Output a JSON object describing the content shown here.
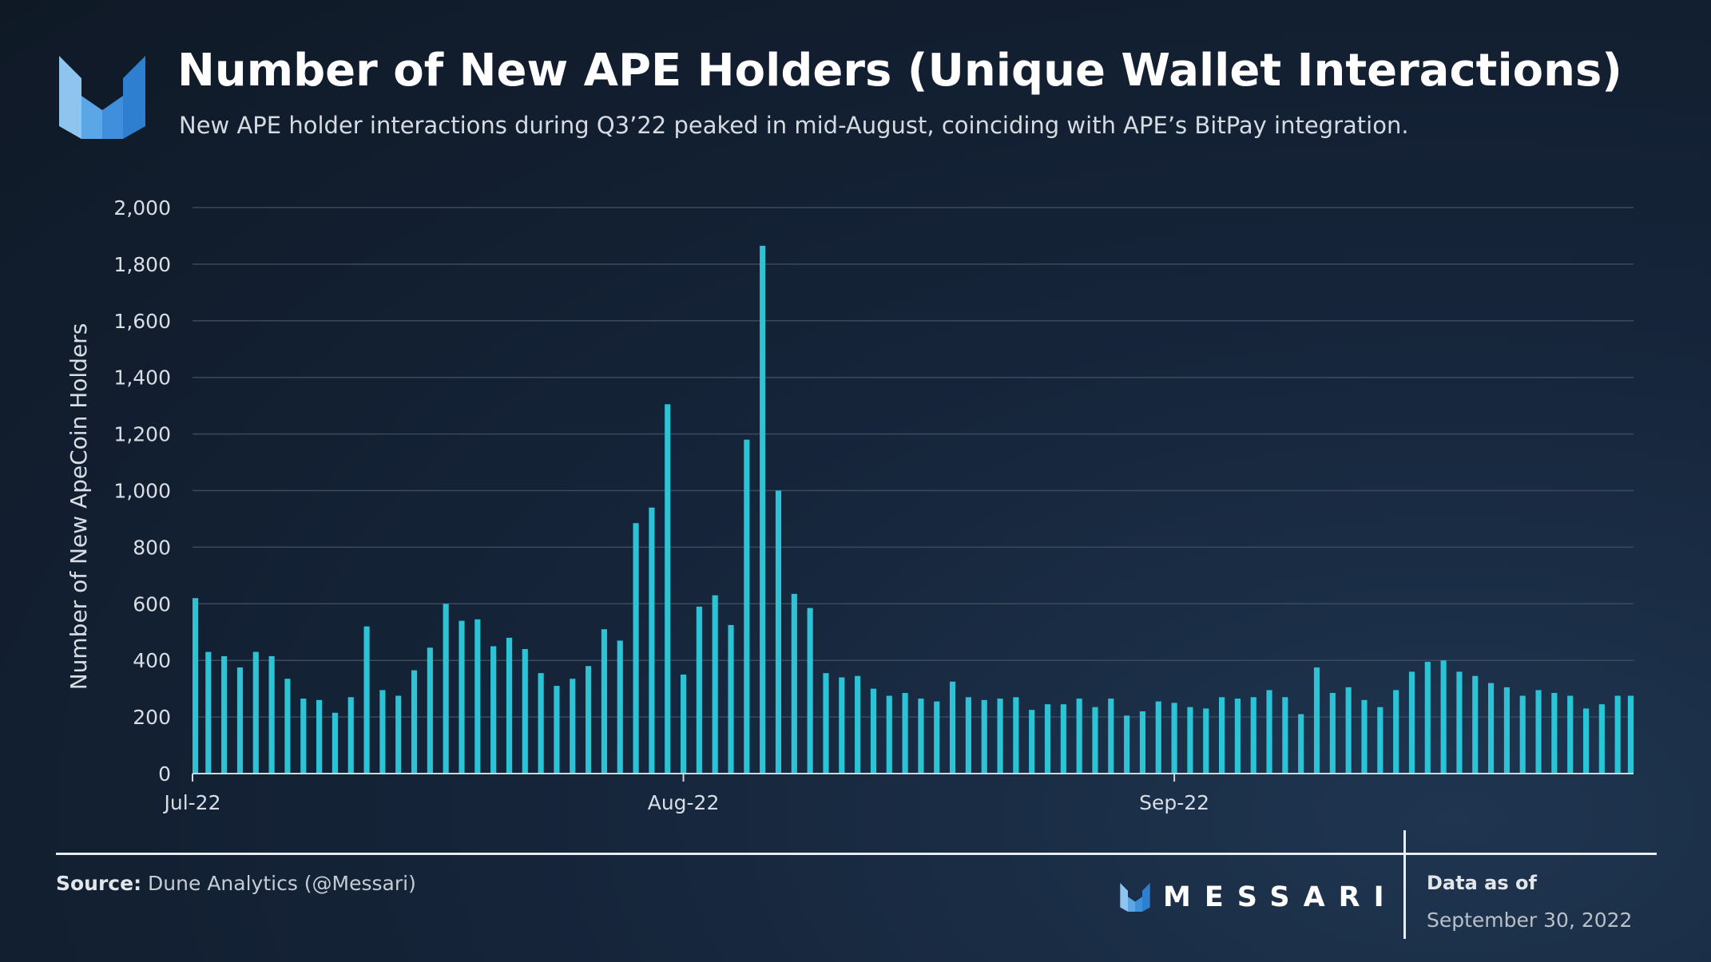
{
  "header": {
    "title": "Number of New APE Holders (Unique Wallet Interactions)",
    "subtitle": "New APE holder interactions during Q3’22 peaked in mid-August, coinciding with APE’s BitPay integration."
  },
  "chart_data": {
    "type": "bar",
    "title": "Number of New APE Holders (Unique Wallet Interactions)",
    "subtitle": "New APE holder interactions during Q3’22 peaked in mid-August, coinciding with APE’s BitPay integration.",
    "xlabel": "",
    "ylabel": "Number of New ApeCoin Holders",
    "ylim": [
      0,
      2000
    ],
    "yticks": [
      0,
      200,
      400,
      600,
      800,
      1000,
      1200,
      1400,
      1600,
      1800,
      2000
    ],
    "ytick_labels": [
      "0",
      "200",
      "400",
      "600",
      "800",
      "1,000",
      "1,200",
      "1,400",
      "1,600",
      "1,800",
      "2,000"
    ],
    "xtick_labels": [
      {
        "label": "Jul-22",
        "date": "2022-07-01"
      },
      {
        "label": "Aug-22",
        "date": "2022-08-01"
      },
      {
        "label": "Sep-22",
        "date": "2022-09-01"
      }
    ],
    "grid": true,
    "color": "#2bc4d6",
    "x": [
      "2022-07-01",
      "2022-07-02",
      "2022-07-03",
      "2022-07-04",
      "2022-07-05",
      "2022-07-06",
      "2022-07-07",
      "2022-07-08",
      "2022-07-09",
      "2022-07-10",
      "2022-07-11",
      "2022-07-12",
      "2022-07-13",
      "2022-07-14",
      "2022-07-15",
      "2022-07-16",
      "2022-07-17",
      "2022-07-18",
      "2022-07-19",
      "2022-07-20",
      "2022-07-21",
      "2022-07-22",
      "2022-07-23",
      "2022-07-24",
      "2022-07-25",
      "2022-07-26",
      "2022-07-27",
      "2022-07-28",
      "2022-07-29",
      "2022-07-30",
      "2022-07-31",
      "2022-08-01",
      "2022-08-02",
      "2022-08-03",
      "2022-08-04",
      "2022-08-05",
      "2022-08-06",
      "2022-08-07",
      "2022-08-08",
      "2022-08-09",
      "2022-08-10",
      "2022-08-11",
      "2022-08-12",
      "2022-08-13",
      "2022-08-14",
      "2022-08-15",
      "2022-08-16",
      "2022-08-17",
      "2022-08-18",
      "2022-08-19",
      "2022-08-20",
      "2022-08-21",
      "2022-08-22",
      "2022-08-23",
      "2022-08-24",
      "2022-08-25",
      "2022-08-26",
      "2022-08-27",
      "2022-08-28",
      "2022-08-29",
      "2022-08-30",
      "2022-08-31",
      "2022-09-01",
      "2022-09-02",
      "2022-09-03",
      "2022-09-04",
      "2022-09-05",
      "2022-09-06",
      "2022-09-07",
      "2022-09-08",
      "2022-09-09",
      "2022-09-10",
      "2022-09-11",
      "2022-09-12",
      "2022-09-13",
      "2022-09-14",
      "2022-09-15",
      "2022-09-16",
      "2022-09-17",
      "2022-09-18",
      "2022-09-19",
      "2022-09-20",
      "2022-09-21",
      "2022-09-22",
      "2022-09-23",
      "2022-09-24",
      "2022-09-25",
      "2022-09-26",
      "2022-09-27",
      "2022-09-28",
      "2022-09-29",
      "2022-09-30"
    ],
    "values": [
      620,
      430,
      415,
      375,
      430,
      415,
      335,
      265,
      260,
      215,
      270,
      520,
      295,
      275,
      365,
      445,
      600,
      540,
      545,
      450,
      480,
      440,
      355,
      310,
      335,
      380,
      510,
      470,
      885,
      940,
      1305,
      350,
      590,
      630,
      525,
      1180,
      1865,
      1000,
      635,
      585,
      355,
      340,
      345,
      300,
      275,
      285,
      265,
      255,
      325,
      270,
      260,
      265,
      270,
      225,
      245,
      245,
      265,
      235,
      265,
      205,
      220,
      255,
      250,
      235,
      230,
      270,
      265,
      270,
      295,
      270,
      210,
      375,
      285,
      305,
      260,
      235,
      295,
      360,
      395,
      400,
      360,
      345,
      320,
      305,
      275,
      295,
      285,
      275,
      230,
      245,
      275,
      275
    ]
  },
  "footer": {
    "source_label": "Source:",
    "source_text": "Dune Analytics (@Messari)",
    "brand": "MESSARI",
    "data_as_of_label": "Data as of",
    "data_as_of_date": "September 30, 2022"
  },
  "colors": {
    "accent": "#2bc4d6",
    "logo_light": "#8fc4ee",
    "logo_mid": "#4a9be0",
    "logo_dark": "#2f7fd0"
  },
  "icons": {
    "logo": "messari-logo-icon"
  }
}
